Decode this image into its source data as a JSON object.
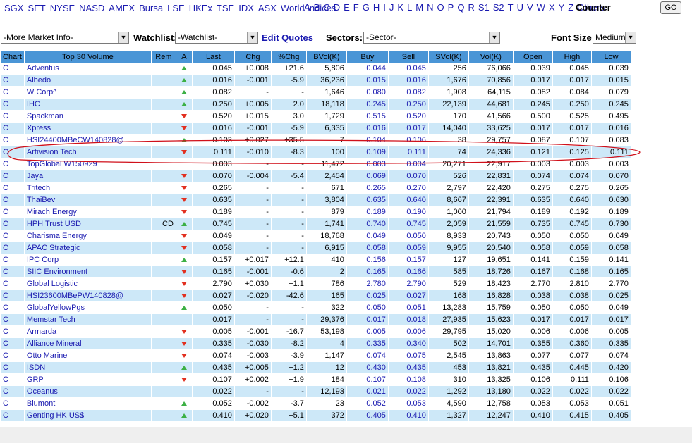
{
  "topbar": {
    "exchanges": [
      "SGX",
      "SET",
      "NYSE",
      "NASD",
      "AMEX",
      "Bursa",
      "LSE",
      "HKEx",
      "TSE",
      "IDX",
      "ASX",
      "World Indices"
    ],
    "letters": [
      "A",
      "B",
      "C",
      "D",
      "E",
      "F",
      "G",
      "H",
      "I",
      "J",
      "K",
      "L",
      "M",
      "N",
      "O",
      "P",
      "Q",
      "R",
      "S1",
      "S2",
      "T",
      "U",
      "V",
      "W",
      "X",
      "Y",
      "Z",
      "Others"
    ],
    "counter_label": "Counter",
    "counter_value": "",
    "go_label": "GO"
  },
  "selectbar": {
    "market_info": "-More Market Info-",
    "watchlist_label": "Watchlist:",
    "watchlist_value": "-Watchlist-",
    "edit_quotes": "Edit Quotes",
    "sectors_label": "Sectors:",
    "sectors_value": "-Sector-",
    "font_size_label": "Font Size:",
    "font_size_value": "Medium"
  },
  "table": {
    "headers": [
      "Chart",
      "Top 30 Volume",
      "Rem",
      "A",
      "Last",
      "Chg",
      "%Chg",
      "BVol(K)",
      "Buy",
      "Sell",
      "SVol(K)",
      "Vol(K)",
      "Open",
      "High",
      "Low"
    ],
    "rows": [
      {
        "chart": "C",
        "name": "Adventus",
        "rem": "",
        "dir": "up",
        "last": "0.045",
        "chg": "+0.008",
        "pchg": "+21.6",
        "bvol": "5,806",
        "buy": "0.044",
        "sell": "0.045",
        "svol": "256",
        "vol": "76,066",
        "open": "0.039",
        "high": "0.045",
        "low": "0.039"
      },
      {
        "chart": "C",
        "name": "Albedo",
        "rem": "",
        "dir": "up",
        "last": "0.016",
        "chg": "-0.001",
        "pchg": "-5.9",
        "bvol": "36,236",
        "buy": "0.015",
        "sell": "0.016",
        "svol": "1,676",
        "vol": "70,856",
        "open": "0.017",
        "high": "0.017",
        "low": "0.015"
      },
      {
        "chart": "C",
        "name": "W Corp^",
        "rem": "",
        "dir": "up",
        "last": "0.082",
        "chg": "-",
        "pchg": "-",
        "bvol": "1,646",
        "buy": "0.080",
        "sell": "0.082",
        "svol": "1,908",
        "vol": "64,115",
        "open": "0.082",
        "high": "0.084",
        "low": "0.079"
      },
      {
        "chart": "C",
        "name": "IHC",
        "rem": "",
        "dir": "up",
        "last": "0.250",
        "chg": "+0.005",
        "pchg": "+2.0",
        "bvol": "18,118",
        "buy": "0.245",
        "sell": "0.250",
        "svol": "22,139",
        "vol": "44,681",
        "open": "0.245",
        "high": "0.250",
        "low": "0.245"
      },
      {
        "chart": "C",
        "name": "Spackman",
        "rem": "",
        "dir": "down",
        "last": "0.520",
        "chg": "+0.015",
        "pchg": "+3.0",
        "bvol": "1,729",
        "buy": "0.515",
        "sell": "0.520",
        "svol": "170",
        "vol": "41,566",
        "open": "0.500",
        "high": "0.525",
        "low": "0.495"
      },
      {
        "chart": "C",
        "name": "Xpress",
        "rem": "",
        "dir": "down",
        "last": "0.016",
        "chg": "-0.001",
        "pchg": "-5.9",
        "bvol": "6,335",
        "buy": "0.016",
        "sell": "0.017",
        "svol": "14,040",
        "vol": "33,625",
        "open": "0.017",
        "high": "0.017",
        "low": "0.016"
      },
      {
        "chart": "C",
        "name": "HSI24400MBeCW140828@",
        "rem": "",
        "dir": "up",
        "last": "0.103",
        "chg": "+0.027",
        "pchg": "+35.5",
        "bvol": "7",
        "buy": "0.104",
        "sell": "0.106",
        "svol": "38",
        "vol": "29,757",
        "open": "0.087",
        "high": "0.107",
        "low": "0.083"
      },
      {
        "chart": "C",
        "name": "Artivision Tech",
        "rem": "",
        "dir": "down",
        "last": "0.111",
        "chg": "-0.010",
        "pchg": "-8.3",
        "bvol": "100",
        "buy": "0.109",
        "sell": "0.111",
        "svol": "74",
        "vol": "24,336",
        "open": "0.121",
        "high": "0.125",
        "low": "0.111"
      },
      {
        "chart": "C",
        "name": "TopGlobal W150929",
        "rem": "",
        "dir": "",
        "last": "0.003",
        "chg": "-",
        "pchg": "-",
        "bvol": "11,472",
        "buy": "0.003",
        "sell": "0.004",
        "svol": "20,271",
        "vol": "22,917",
        "open": "0.003",
        "high": "0.003",
        "low": "0.003"
      },
      {
        "chart": "C",
        "name": "Jaya",
        "rem": "",
        "dir": "down",
        "last": "0.070",
        "chg": "-0.004",
        "pchg": "-5.4",
        "bvol": "2,454",
        "buy": "0.069",
        "sell": "0.070",
        "svol": "526",
        "vol": "22,831",
        "open": "0.074",
        "high": "0.074",
        "low": "0.070"
      },
      {
        "chart": "C",
        "name": "Tritech",
        "rem": "",
        "dir": "down",
        "last": "0.265",
        "chg": "-",
        "pchg": "-",
        "bvol": "671",
        "buy": "0.265",
        "sell": "0.270",
        "svol": "2,797",
        "vol": "22,420",
        "open": "0.275",
        "high": "0.275",
        "low": "0.265"
      },
      {
        "chart": "C",
        "name": "ThaiBev",
        "rem": "",
        "dir": "down",
        "last": "0.635",
        "chg": "-",
        "pchg": "-",
        "bvol": "3,804",
        "buy": "0.635",
        "sell": "0.640",
        "svol": "8,667",
        "vol": "22,391",
        "open": "0.635",
        "high": "0.640",
        "low": "0.630"
      },
      {
        "chart": "C",
        "name": "Mirach Energy",
        "rem": "",
        "dir": "down",
        "last": "0.189",
        "chg": "-",
        "pchg": "-",
        "bvol": "879",
        "buy": "0.189",
        "sell": "0.190",
        "svol": "1,000",
        "vol": "21,794",
        "open": "0.189",
        "high": "0.192",
        "low": "0.189"
      },
      {
        "chart": "C",
        "name": "HPH Trust USD",
        "rem": "CD",
        "dir": "up",
        "last": "0.745",
        "chg": "-",
        "pchg": "-",
        "bvol": "1,741",
        "buy": "0.740",
        "sell": "0.745",
        "svol": "2,059",
        "vol": "21,559",
        "open": "0.735",
        "high": "0.745",
        "low": "0.730"
      },
      {
        "chart": "C",
        "name": "Charisma Energy",
        "rem": "",
        "dir": "down",
        "last": "0.049",
        "chg": "-",
        "pchg": "-",
        "bvol": "18,768",
        "buy": "0.049",
        "sell": "0.050",
        "svol": "8,933",
        "vol": "20,743",
        "open": "0.050",
        "high": "0.050",
        "low": "0.049"
      },
      {
        "chart": "C",
        "name": "APAC Strategic",
        "rem": "",
        "dir": "down",
        "last": "0.058",
        "chg": "-",
        "pchg": "-",
        "bvol": "6,915",
        "buy": "0.058",
        "sell": "0.059",
        "svol": "9,955",
        "vol": "20,540",
        "open": "0.058",
        "high": "0.059",
        "low": "0.058"
      },
      {
        "chart": "C",
        "name": "IPC Corp",
        "rem": "",
        "dir": "up",
        "last": "0.157",
        "chg": "+0.017",
        "pchg": "+12.1",
        "bvol": "410",
        "buy": "0.156",
        "sell": "0.157",
        "svol": "127",
        "vol": "19,651",
        "open": "0.141",
        "high": "0.159",
        "low": "0.141"
      },
      {
        "chart": "C",
        "name": "SIIC Environment",
        "rem": "",
        "dir": "down",
        "last": "0.165",
        "chg": "-0.001",
        "pchg": "-0.6",
        "bvol": "2",
        "buy": "0.165",
        "sell": "0.166",
        "svol": "585",
        "vol": "18,726",
        "open": "0.167",
        "high": "0.168",
        "low": "0.165"
      },
      {
        "chart": "C",
        "name": "Global Logistic",
        "rem": "",
        "dir": "down",
        "last": "2.790",
        "chg": "+0.030",
        "pchg": "+1.1",
        "bvol": "786",
        "buy": "2.780",
        "sell": "2.790",
        "svol": "529",
        "vol": "18,423",
        "open": "2.770",
        "high": "2.810",
        "low": "2.770"
      },
      {
        "chart": "C",
        "name": "HSI23600MBePW140828@",
        "rem": "",
        "dir": "down",
        "last": "0.027",
        "chg": "-0.020",
        "pchg": "-42.6",
        "bvol": "165",
        "buy": "0.025",
        "sell": "0.027",
        "svol": "168",
        "vol": "16,828",
        "open": "0.038",
        "high": "0.038",
        "low": "0.025"
      },
      {
        "chart": "C",
        "name": "GlobalYellowPgs",
        "rem": "",
        "dir": "up",
        "last": "0.050",
        "chg": "-",
        "pchg": "-",
        "bvol": "322",
        "buy": "0.050",
        "sell": "0.051",
        "svol": "13,283",
        "vol": "15,759",
        "open": "0.050",
        "high": "0.050",
        "low": "0.049"
      },
      {
        "chart": "C",
        "name": "Memstar Tech",
        "rem": "",
        "dir": "",
        "last": "0.017",
        "chg": "-",
        "pchg": "-",
        "bvol": "29,376",
        "buy": "0.017",
        "sell": "0.018",
        "svol": "27,935",
        "vol": "15,623",
        "open": "0.017",
        "high": "0.017",
        "low": "0.017"
      },
      {
        "chart": "C",
        "name": "Armarda",
        "rem": "",
        "dir": "down",
        "last": "0.005",
        "chg": "-0.001",
        "pchg": "-16.7",
        "bvol": "53,198",
        "buy": "0.005",
        "sell": "0.006",
        "svol": "29,795",
        "vol": "15,020",
        "open": "0.006",
        "high": "0.006",
        "low": "0.005"
      },
      {
        "chart": "C",
        "name": "Alliance Mineral",
        "rem": "",
        "dir": "down",
        "last": "0.335",
        "chg": "-0.030",
        "pchg": "-8.2",
        "bvol": "4",
        "buy": "0.335",
        "sell": "0.340",
        "svol": "502",
        "vol": "14,701",
        "open": "0.355",
        "high": "0.360",
        "low": "0.335"
      },
      {
        "chart": "C",
        "name": "Otto Marine",
        "rem": "",
        "dir": "down",
        "last": "0.074",
        "chg": "-0.003",
        "pchg": "-3.9",
        "bvol": "1,147",
        "buy": "0.074",
        "sell": "0.075",
        "svol": "2,545",
        "vol": "13,863",
        "open": "0.077",
        "high": "0.077",
        "low": "0.074"
      },
      {
        "chart": "C",
        "name": "ISDN",
        "rem": "",
        "dir": "up",
        "last": "0.435",
        "chg": "+0.005",
        "pchg": "+1.2",
        "bvol": "12",
        "buy": "0.430",
        "sell": "0.435",
        "svol": "453",
        "vol": "13,821",
        "open": "0.435",
        "high": "0.445",
        "low": "0.420"
      },
      {
        "chart": "C",
        "name": "GRP",
        "rem": "",
        "dir": "down",
        "last": "0.107",
        "chg": "+0.002",
        "pchg": "+1.9",
        "bvol": "184",
        "buy": "0.107",
        "sell": "0.108",
        "svol": "310",
        "vol": "13,325",
        "open": "0.106",
        "high": "0.111",
        "low": "0.106"
      },
      {
        "chart": "C",
        "name": "Oceanus",
        "rem": "",
        "dir": "",
        "last": "0.022",
        "chg": "-",
        "pchg": "-",
        "bvol": "12,193",
        "buy": "0.021",
        "sell": "0.022",
        "svol": "1,292",
        "vol": "13,180",
        "open": "0.022",
        "high": "0.022",
        "low": "0.022"
      },
      {
        "chart": "C",
        "name": "Blumont",
        "rem": "",
        "dir": "up",
        "last": "0.052",
        "chg": "-0.002",
        "pchg": "-3.7",
        "bvol": "23",
        "buy": "0.052",
        "sell": "0.053",
        "svol": "4,590",
        "vol": "12,758",
        "open": "0.053",
        "high": "0.053",
        "low": "0.051"
      },
      {
        "chart": "C",
        "name": "Genting HK US$",
        "rem": "",
        "dir": "up",
        "last": "0.410",
        "chg": "+0.020",
        "pchg": "+5.1",
        "bvol": "372",
        "buy": "0.405",
        "sell": "0.410",
        "svol": "1,327",
        "vol": "12,247",
        "open": "0.410",
        "high": "0.415",
        "low": "0.405"
      }
    ]
  },
  "colors": {
    "header_bg": "#4a95d6",
    "row_alt_bg": "#cde8f8",
    "link_blue": "#1a1ab0",
    "up_green": "#3cb044",
    "down_red": "#e23020",
    "annotation_red": "#d0101a"
  }
}
